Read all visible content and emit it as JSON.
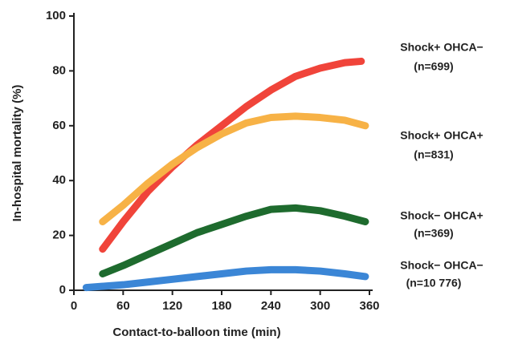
{
  "chart_data": {
    "type": "line",
    "xlabel": "Contact-to-balloon time (min)",
    "ylabel": "In-hospital mortality (%)",
    "xlim": [
      0,
      360
    ],
    "xticks": [
      0,
      60,
      120,
      180,
      240,
      300,
      360
    ],
    "ylim": [
      0,
      100
    ],
    "yticks": [
      0,
      20,
      40,
      60,
      80,
      100
    ],
    "series": [
      {
        "name": "Shock+ OHCA−",
        "n_label": "(n=699)",
        "color": "#f0443a",
        "x": [
          35,
          60,
          90,
          120,
          150,
          180,
          210,
          240,
          270,
          300,
          330,
          350
        ],
        "values": [
          15,
          25,
          36,
          45,
          53,
          60,
          67,
          73,
          78,
          81,
          83,
          83.5
        ]
      },
      {
        "name": "Shock+ OHCA+",
        "n_label": "(n=831)",
        "color": "#f7b246",
        "x": [
          35,
          60,
          90,
          120,
          150,
          180,
          210,
          240,
          270,
          300,
          330,
          355
        ],
        "values": [
          25,
          31,
          39,
          46,
          52,
          57,
          61,
          63,
          63.5,
          63,
          62,
          60
        ]
      },
      {
        "name": "Shock− OHCA+",
        "n_label": "(n=369)",
        "color": "#1e6b2e",
        "x": [
          35,
          60,
          90,
          120,
          150,
          180,
          210,
          240,
          270,
          300,
          330,
          355
        ],
        "values": [
          6,
          9,
          13,
          17,
          21,
          24,
          27,
          29.5,
          30,
          29,
          27,
          25
        ]
      },
      {
        "name": "Shock− OHCA−",
        "n_label": "(n=10 776)",
        "color": "#3b86d6",
        "x": [
          15,
          60,
          90,
          120,
          150,
          180,
          210,
          240,
          270,
          300,
          330,
          355
        ],
        "values": [
          1,
          2,
          3,
          4,
          5,
          6,
          7,
          7.5,
          7.5,
          7,
          6,
          5
        ]
      }
    ]
  }
}
